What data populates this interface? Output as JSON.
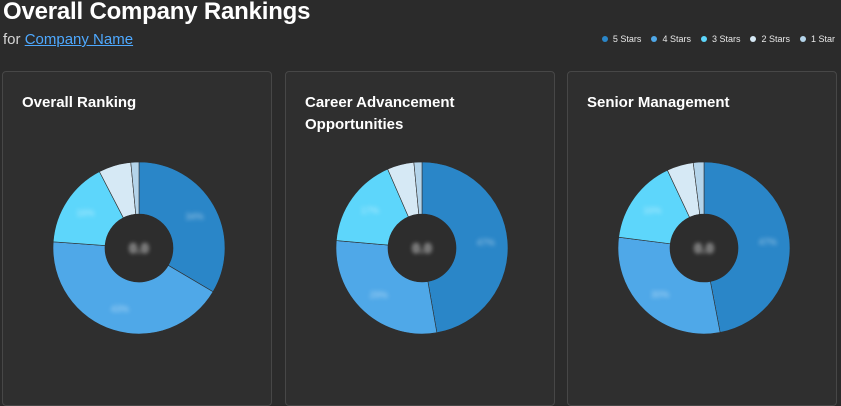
{
  "header": {
    "title": "Overall Company Rankings",
    "subtitle_prefix": "for",
    "company_link": "Company Name"
  },
  "legend": [
    {
      "label": "5 Stars",
      "color": "#2a86c8"
    },
    {
      "label": "4 Stars",
      "color": "#4fa8e8"
    },
    {
      "label": "3 Stars",
      "color": "#5dd6fb"
    },
    {
      "label": "2 Stars",
      "color": "#d6e9f5"
    },
    {
      "label": "1 Star",
      "color": "#b4d4ea"
    }
  ],
  "chart_data": [
    {
      "type": "pie",
      "title": "Overall Ranking",
      "categories": [
        "5 Stars",
        "4 Stars",
        "3 Stars",
        "2 Stars",
        "1 Star"
      ],
      "values": [
        33,
        42,
        16,
        6,
        1.5
      ],
      "center_value": "0.0"
    },
    {
      "type": "pie",
      "title": "Career Advancement Opportunities",
      "categories": [
        "5 Stars",
        "4 Stars",
        "3 Stars",
        "2 Stars",
        "1 Star"
      ],
      "values": [
        47,
        29,
        17,
        5,
        1.5
      ],
      "center_value": "0.0"
    },
    {
      "type": "pie",
      "title": "Senior Management",
      "categories": [
        "5 Stars",
        "4 Stars",
        "3 Stars",
        "2 Stars",
        "1 Star"
      ],
      "values": [
        47,
        30,
        16,
        5,
        2
      ],
      "center_value": "0.0"
    }
  ]
}
